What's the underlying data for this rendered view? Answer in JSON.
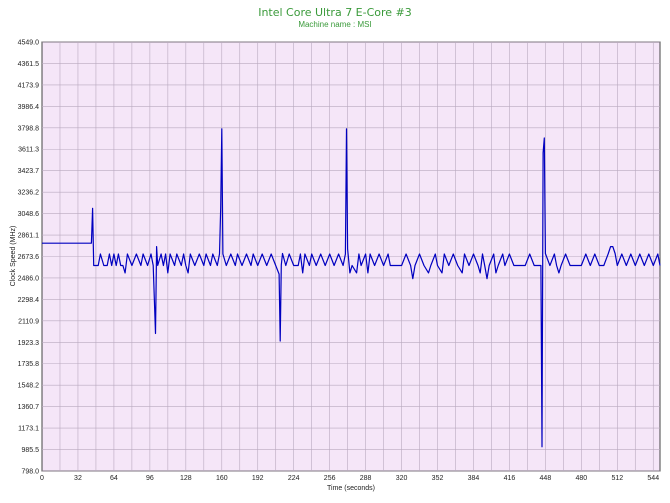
{
  "chart_data": {
    "type": "line",
    "title": "Intel Core Ultra 7 E-Core #3",
    "subtitle": "Machine name : MSI",
    "xlabel": "Time (seconds)",
    "ylabel": "Clock Speed (MHz)",
    "xlim": [
      0,
      550
    ],
    "ylim": [
      798.0,
      4549.0
    ],
    "x_ticks": [
      0,
      32,
      64,
      96,
      128,
      160,
      192,
      224,
      256,
      288,
      320,
      352,
      384,
      416,
      448,
      480,
      512,
      544
    ],
    "y_ticks": [
      "798.0",
      "985.5",
      "1173.1",
      "1360.7",
      "1548.2",
      "1735.8",
      "1923.3",
      "2110.9",
      "2298.4",
      "2486.0",
      "2673.6",
      "2861.1",
      "3048.6",
      "3236.2",
      "3423.7",
      "3611.3",
      "3798.8",
      "3986.4",
      "4173.9",
      "4361.5",
      "4549.0"
    ],
    "grid": true,
    "background_color": "#f5e6f8",
    "grid_color": "#b9a9bf",
    "line_color": "#0000c0",
    "series": [
      {
        "values": [
          [
            0,
            2790
          ],
          [
            44,
            2790
          ],
          [
            45,
            3095
          ],
          [
            46,
            2595
          ],
          [
            50,
            2595
          ],
          [
            52,
            2695
          ],
          [
            55,
            2595
          ],
          [
            58,
            2595
          ],
          [
            60,
            2695
          ],
          [
            62,
            2595
          ],
          [
            64,
            2695
          ],
          [
            66,
            2595
          ],
          [
            68,
            2695
          ],
          [
            70,
            2595
          ],
          [
            72,
            2595
          ],
          [
            74,
            2530
          ],
          [
            76,
            2695
          ],
          [
            80,
            2595
          ],
          [
            84,
            2695
          ],
          [
            88,
            2595
          ],
          [
            90,
            2695
          ],
          [
            94,
            2595
          ],
          [
            97,
            2695
          ],
          [
            99,
            2595
          ],
          [
            101,
            2000
          ],
          [
            102,
            2760
          ],
          [
            103,
            2595
          ],
          [
            106,
            2695
          ],
          [
            108,
            2595
          ],
          [
            110,
            2695
          ],
          [
            112,
            2530
          ],
          [
            114,
            2695
          ],
          [
            118,
            2595
          ],
          [
            120,
            2695
          ],
          [
            124,
            2595
          ],
          [
            126,
            2695
          ],
          [
            128,
            2595
          ],
          [
            130,
            2530
          ],
          [
            132,
            2695
          ],
          [
            136,
            2595
          ],
          [
            140,
            2695
          ],
          [
            144,
            2595
          ],
          [
            146,
            2695
          ],
          [
            150,
            2595
          ],
          [
            152,
            2695
          ],
          [
            156,
            2595
          ],
          [
            158,
            2695
          ],
          [
            159,
            3100
          ],
          [
            160,
            3790
          ],
          [
            161,
            2695
          ],
          [
            164,
            2595
          ],
          [
            168,
            2695
          ],
          [
            172,
            2595
          ],
          [
            174,
            2695
          ],
          [
            178,
            2595
          ],
          [
            182,
            2695
          ],
          [
            186,
            2595
          ],
          [
            188,
            2695
          ],
          [
            192,
            2595
          ],
          [
            196,
            2695
          ],
          [
            200,
            2595
          ],
          [
            204,
            2695
          ],
          [
            208,
            2595
          ],
          [
            211,
            2520
          ],
          [
            212,
            1935
          ],
          [
            213,
            2600
          ],
          [
            214,
            2700
          ],
          [
            217,
            2595
          ],
          [
            220,
            2695
          ],
          [
            224,
            2595
          ],
          [
            228,
            2595
          ],
          [
            230,
            2695
          ],
          [
            232,
            2530
          ],
          [
            234,
            2695
          ],
          [
            238,
            2595
          ],
          [
            240,
            2695
          ],
          [
            244,
            2595
          ],
          [
            248,
            2695
          ],
          [
            252,
            2595
          ],
          [
            256,
            2695
          ],
          [
            260,
            2595
          ],
          [
            264,
            2695
          ],
          [
            268,
            2595
          ],
          [
            270,
            2695
          ],
          [
            271,
            3790
          ],
          [
            272,
            2740
          ],
          [
            274,
            2530
          ],
          [
            276,
            2595
          ],
          [
            280,
            2530
          ],
          [
            282,
            2695
          ],
          [
            284,
            2595
          ],
          [
            288,
            2695
          ],
          [
            290,
            2530
          ],
          [
            292,
            2695
          ],
          [
            296,
            2595
          ],
          [
            300,
            2695
          ],
          [
            304,
            2595
          ],
          [
            308,
            2695
          ],
          [
            310,
            2595
          ],
          [
            320,
            2595
          ],
          [
            324,
            2695
          ],
          [
            328,
            2595
          ],
          [
            330,
            2480
          ],
          [
            332,
            2595
          ],
          [
            336,
            2695
          ],
          [
            340,
            2595
          ],
          [
            344,
            2530
          ],
          [
            346,
            2595
          ],
          [
            350,
            2695
          ],
          [
            352,
            2595
          ],
          [
            356,
            2530
          ],
          [
            358,
            2695
          ],
          [
            362,
            2595
          ],
          [
            366,
            2695
          ],
          [
            370,
            2595
          ],
          [
            374,
            2530
          ],
          [
            376,
            2695
          ],
          [
            380,
            2595
          ],
          [
            384,
            2695
          ],
          [
            388,
            2595
          ],
          [
            390,
            2530
          ],
          [
            392,
            2695
          ],
          [
            394,
            2595
          ],
          [
            396,
            2480
          ],
          [
            398,
            2595
          ],
          [
            402,
            2695
          ],
          [
            404,
            2530
          ],
          [
            406,
            2595
          ],
          [
            410,
            2695
          ],
          [
            412,
            2595
          ],
          [
            416,
            2695
          ],
          [
            420,
            2595
          ],
          [
            430,
            2595
          ],
          [
            434,
            2695
          ],
          [
            438,
            2595
          ],
          [
            444,
            2595
          ],
          [
            445,
            1010
          ],
          [
            446,
            3580
          ],
          [
            447,
            3710
          ],
          [
            448,
            2700
          ],
          [
            452,
            2595
          ],
          [
            456,
            2695
          ],
          [
            458,
            2595
          ],
          [
            460,
            2530
          ],
          [
            462,
            2595
          ],
          [
            466,
            2695
          ],
          [
            470,
            2595
          ],
          [
            480,
            2595
          ],
          [
            484,
            2695
          ],
          [
            488,
            2595
          ],
          [
            492,
            2695
          ],
          [
            496,
            2595
          ],
          [
            500,
            2595
          ],
          [
            504,
            2700
          ],
          [
            506,
            2760
          ],
          [
            508,
            2760
          ],
          [
            510,
            2700
          ],
          [
            512,
            2595
          ],
          [
            516,
            2695
          ],
          [
            520,
            2595
          ],
          [
            524,
            2695
          ],
          [
            528,
            2595
          ],
          [
            532,
            2695
          ],
          [
            536,
            2595
          ],
          [
            540,
            2695
          ],
          [
            544,
            2595
          ],
          [
            548,
            2695
          ],
          [
            550,
            2595
          ]
        ]
      }
    ]
  }
}
